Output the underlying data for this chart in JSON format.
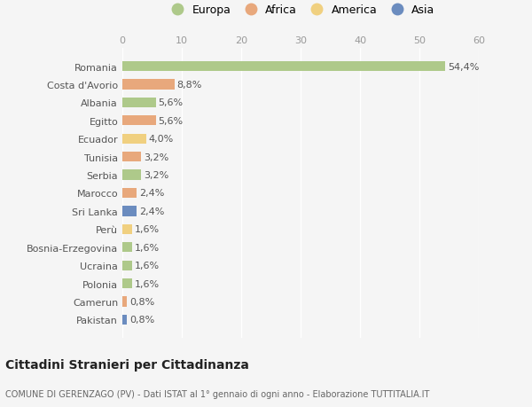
{
  "countries": [
    "Romania",
    "Costa d'Avorio",
    "Albania",
    "Egitto",
    "Ecuador",
    "Tunisia",
    "Serbia",
    "Marocco",
    "Sri Lanka",
    "Perù",
    "Bosnia-Erzegovina",
    "Ucraina",
    "Polonia",
    "Camerun",
    "Pakistan"
  ],
  "values": [
    54.4,
    8.8,
    5.6,
    5.6,
    4.0,
    3.2,
    3.2,
    2.4,
    2.4,
    1.6,
    1.6,
    1.6,
    1.6,
    0.8,
    0.8
  ],
  "labels": [
    "54,4%",
    "8,8%",
    "5,6%",
    "5,6%",
    "4,0%",
    "3,2%",
    "3,2%",
    "2,4%",
    "2,4%",
    "1,6%",
    "1,6%",
    "1,6%",
    "1,6%",
    "0,8%",
    "0,8%"
  ],
  "continents": [
    "Europa",
    "Africa",
    "Europa",
    "Africa",
    "America",
    "Africa",
    "Europa",
    "Africa",
    "Asia",
    "America",
    "Europa",
    "Europa",
    "Europa",
    "Africa",
    "Asia"
  ],
  "continent_colors": {
    "Europa": "#aec98a",
    "Africa": "#e8a87c",
    "America": "#f0d080",
    "Asia": "#6b8cbf"
  },
  "legend_items": [
    "Europa",
    "Africa",
    "America",
    "Asia"
  ],
  "legend_colors": [
    "#aec98a",
    "#e8a87c",
    "#f0d080",
    "#6b8cbf"
  ],
  "xlim": [
    0,
    60
  ],
  "xticks": [
    0,
    10,
    20,
    30,
    40,
    50,
    60
  ],
  "title": "Cittadini Stranieri per Cittadinanza",
  "subtitle": "COMUNE DI GERENZAGO (PV) - Dati ISTAT al 1° gennaio di ogni anno - Elaborazione TUTTITALIA.IT",
  "bg_color": "#f5f5f5",
  "bar_height": 0.55,
  "label_fontsize": 8,
  "axis_label_fontsize": 8,
  "tick_fontsize": 8
}
